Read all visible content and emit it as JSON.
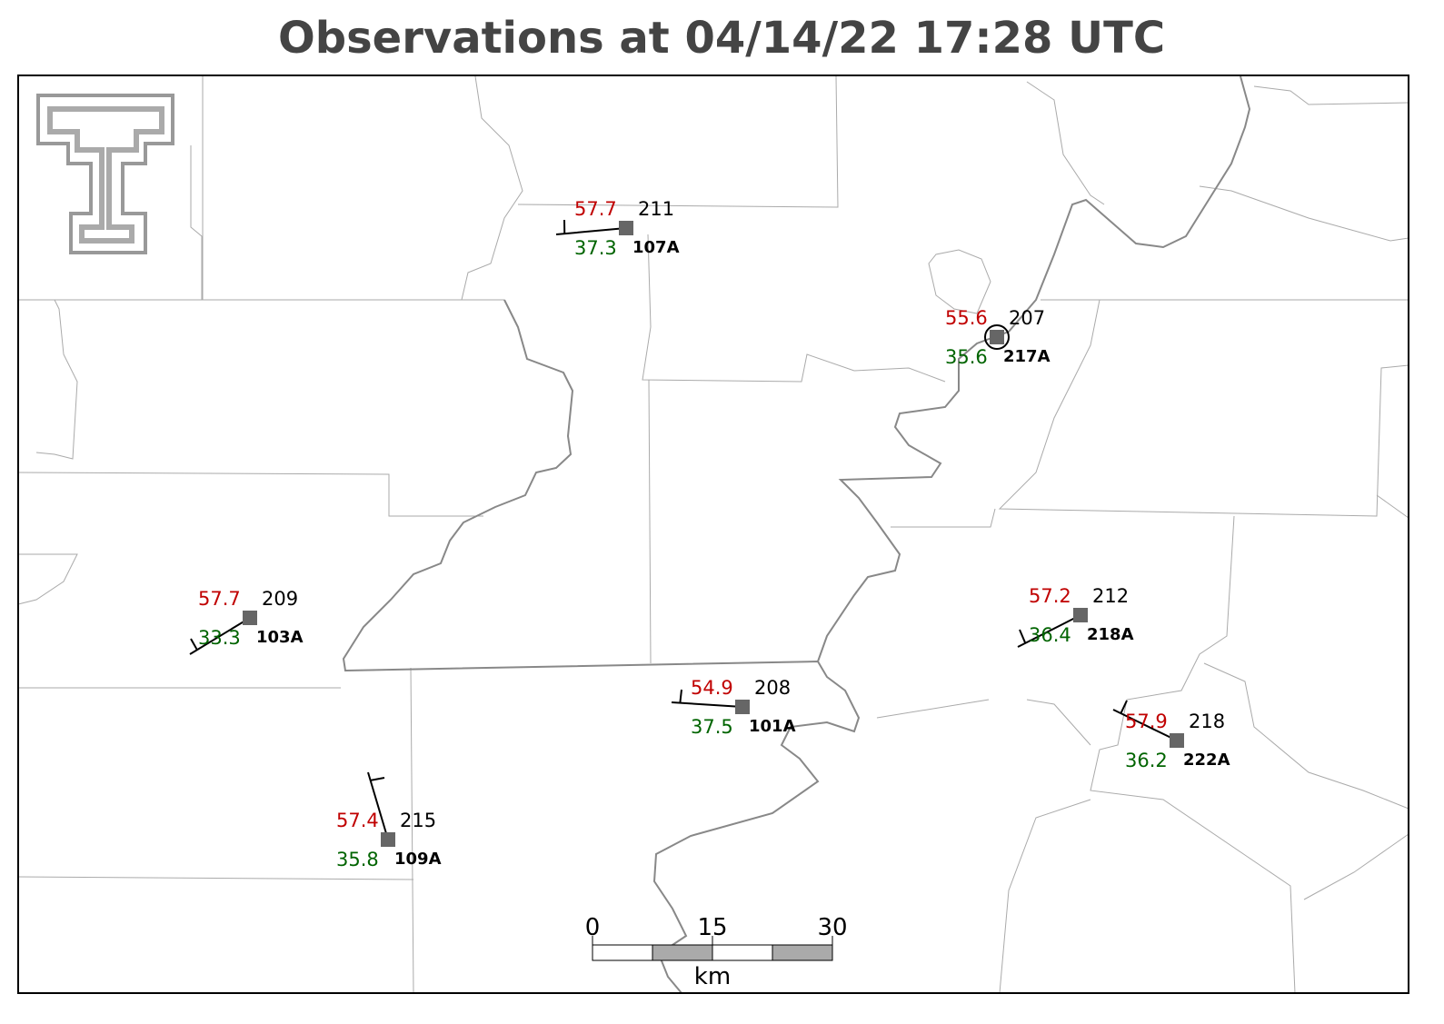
{
  "title": "Observations at 04/14/22 17:28 UTC",
  "stations": [
    {
      "temperature": 57.7,
      "dewpoint": 37.3,
      "pressure": 211,
      "id": "107A"
    },
    {
      "temperature": 55.6,
      "dewpoint": 35.6,
      "pressure": 207,
      "id": "217A"
    },
    {
      "temperature": 57.7,
      "dewpoint": 33.3,
      "pressure": 209,
      "id": "103A"
    },
    {
      "temperature": 57.2,
      "dewpoint": 36.4,
      "pressure": 212,
      "id": "218A"
    },
    {
      "temperature": 54.9,
      "dewpoint": 37.5,
      "pressure": 208,
      "id": "101A"
    },
    {
      "temperature": 57.9,
      "dewpoint": 36.2,
      "pressure": 218,
      "id": "222A"
    },
    {
      "temperature": 57.4,
      "dewpoint": 35.8,
      "pressure": 215,
      "id": "109A"
    }
  ],
  "scale_bar": {
    "labels": [
      0,
      15,
      30
    ],
    "unit": "km"
  }
}
